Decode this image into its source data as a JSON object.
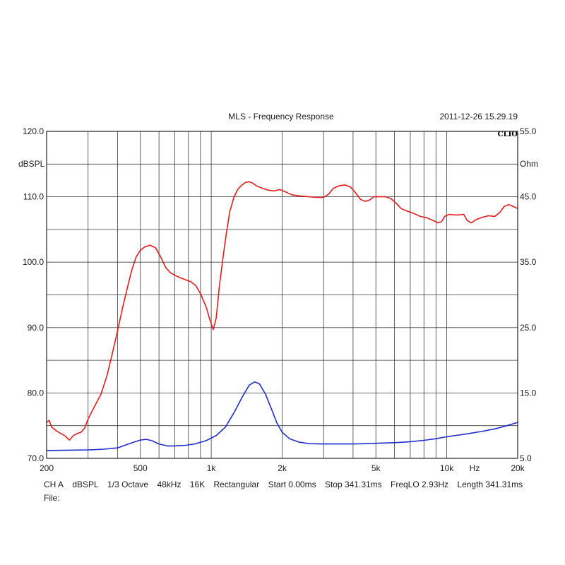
{
  "chart_data": {
    "type": "line",
    "title": "MLS - Frequency Response",
    "timestamp": "2011-12-26 15.29.19",
    "brand": "CLIO",
    "x_scale": "log",
    "xlim": [
      200,
      20000
    ],
    "x_ticks": [
      {
        "value": 200,
        "label": "200"
      },
      {
        "value": 500,
        "label": "500"
      },
      {
        "value": 1000,
        "label": "1k"
      },
      {
        "value": 2000,
        "label": "2k"
      },
      {
        "value": 5000,
        "label": "5k"
      },
      {
        "value": 10000,
        "label": "10k"
      },
      {
        "value": 20000,
        "label": "20k"
      }
    ],
    "x_unit": "Hz",
    "y_left": {
      "unit": "dBSPL",
      "ylim": [
        70,
        120
      ],
      "ticks": [
        {
          "value": 120,
          "label": "120.0"
        },
        {
          "value": 110,
          "label": "110.0"
        },
        {
          "value": 100,
          "label": "100.0"
        },
        {
          "value": 90,
          "label": "90.0"
        },
        {
          "value": 80,
          "label": "80.0"
        },
        {
          "value": 70,
          "label": "70.0"
        }
      ]
    },
    "y_right": {
      "unit": "Ohm",
      "ylim": [
        5,
        55
      ],
      "ticks": [
        {
          "value": 55,
          "label": "55.0"
        },
        {
          "value": 45,
          "label": "45.0"
        },
        {
          "value": 35,
          "label": "35.0"
        },
        {
          "value": 25,
          "label": "25.0"
        },
        {
          "value": 15,
          "label": "15.0"
        },
        {
          "value": 5,
          "label": "5.0"
        }
      ]
    },
    "grid": true,
    "series": [
      {
        "color": "#e31b1b",
        "axis": "left",
        "points": [
          [
            200,
            75.5
          ],
          [
            205,
            75.8
          ],
          [
            210,
            74.8
          ],
          [
            220,
            74.2
          ],
          [
            230,
            73.8
          ],
          [
            240,
            73.4
          ],
          [
            250,
            72.8
          ],
          [
            260,
            73.5
          ],
          [
            270,
            73.8
          ],
          [
            280,
            74.0
          ],
          [
            290,
            74.6
          ],
          [
            300,
            76.0
          ],
          [
            320,
            78.0
          ],
          [
            340,
            79.8
          ],
          [
            360,
            82.5
          ],
          [
            380,
            86.0
          ],
          [
            400,
            89.5
          ],
          [
            420,
            93.0
          ],
          [
            440,
            96.0
          ],
          [
            460,
            98.8
          ],
          [
            480,
            100.8
          ],
          [
            500,
            101.8
          ],
          [
            520,
            102.3
          ],
          [
            550,
            102.6
          ],
          [
            580,
            102.2
          ],
          [
            610,
            100.8
          ],
          [
            640,
            99.2
          ],
          [
            670,
            98.4
          ],
          [
            700,
            98.0
          ],
          [
            740,
            97.6
          ],
          [
            780,
            97.3
          ],
          [
            820,
            97.0
          ],
          [
            860,
            96.4
          ],
          [
            900,
            95.2
          ],
          [
            950,
            93.2
          ],
          [
            990,
            91.0
          ],
          [
            1020,
            89.7
          ],
          [
            1050,
            91.5
          ],
          [
            1080,
            96.0
          ],
          [
            1120,
            100.5
          ],
          [
            1160,
            104.5
          ],
          [
            1200,
            107.8
          ],
          [
            1250,
            110.0
          ],
          [
            1300,
            111.2
          ],
          [
            1350,
            111.8
          ],
          [
            1400,
            112.2
          ],
          [
            1450,
            112.3
          ],
          [
            1500,
            112.1
          ],
          [
            1550,
            111.7
          ],
          [
            1650,
            111.3
          ],
          [
            1750,
            111.0
          ],
          [
            1850,
            110.9
          ],
          [
            1950,
            111.1
          ],
          [
            2050,
            110.8
          ],
          [
            2200,
            110.3
          ],
          [
            2400,
            110.1
          ],
          [
            2600,
            110.0
          ],
          [
            2800,
            109.9
          ],
          [
            3000,
            109.9
          ],
          [
            3150,
            110.4
          ],
          [
            3300,
            111.3
          ],
          [
            3500,
            111.7
          ],
          [
            3700,
            111.8
          ],
          [
            3900,
            111.5
          ],
          [
            4100,
            110.6
          ],
          [
            4300,
            109.6
          ],
          [
            4500,
            109.3
          ],
          [
            4700,
            109.5
          ],
          [
            4900,
            110.0
          ],
          [
            5200,
            110.0
          ],
          [
            5500,
            110.0
          ],
          [
            5800,
            109.7
          ],
          [
            6100,
            109.0
          ],
          [
            6400,
            108.2
          ],
          [
            6800,
            107.8
          ],
          [
            7200,
            107.5
          ],
          [
            7700,
            107.0
          ],
          [
            8200,
            106.8
          ],
          [
            8700,
            106.4
          ],
          [
            9200,
            106.0
          ],
          [
            9500,
            106.2
          ],
          [
            9800,
            107.0
          ],
          [
            10200,
            107.3
          ],
          [
            11000,
            107.2
          ],
          [
            11800,
            107.3
          ],
          [
            12200,
            106.4
          ],
          [
            12700,
            106.0
          ],
          [
            13300,
            106.5
          ],
          [
            14000,
            106.8
          ],
          [
            15000,
            107.1
          ],
          [
            16000,
            107.0
          ],
          [
            16800,
            107.6
          ],
          [
            17500,
            108.5
          ],
          [
            18300,
            108.8
          ],
          [
            19200,
            108.5
          ],
          [
            20000,
            108.2
          ]
        ]
      },
      {
        "color": "#1f2ecc",
        "axis": "right",
        "points": [
          [
            200,
            6.2
          ],
          [
            250,
            6.25
          ],
          [
            300,
            6.3
          ],
          [
            350,
            6.4
          ],
          [
            400,
            6.6
          ],
          [
            430,
            7.0
          ],
          [
            470,
            7.5
          ],
          [
            500,
            7.8
          ],
          [
            530,
            7.9
          ],
          [
            560,
            7.7
          ],
          [
            600,
            7.2
          ],
          [
            650,
            6.9
          ],
          [
            700,
            6.9
          ],
          [
            780,
            7.0
          ],
          [
            850,
            7.2
          ],
          [
            950,
            7.7
          ],
          [
            1050,
            8.5
          ],
          [
            1150,
            9.8
          ],
          [
            1250,
            12.0
          ],
          [
            1350,
            14.3
          ],
          [
            1450,
            16.2
          ],
          [
            1530,
            16.7
          ],
          [
            1600,
            16.4
          ],
          [
            1700,
            14.8
          ],
          [
            1800,
            12.6
          ],
          [
            1900,
            10.4
          ],
          [
            2000,
            9.0
          ],
          [
            2150,
            8.0
          ],
          [
            2350,
            7.5
          ],
          [
            2600,
            7.25
          ],
          [
            3000,
            7.2
          ],
          [
            3500,
            7.2
          ],
          [
            4000,
            7.2
          ],
          [
            4500,
            7.25
          ],
          [
            5000,
            7.3
          ],
          [
            6000,
            7.4
          ],
          [
            7000,
            7.55
          ],
          [
            8000,
            7.75
          ],
          [
            9000,
            8.0
          ],
          [
            10000,
            8.3
          ],
          [
            12000,
            8.7
          ],
          [
            14000,
            9.1
          ],
          [
            16000,
            9.5
          ],
          [
            18000,
            10.0
          ],
          [
            20000,
            10.5
          ]
        ]
      }
    ]
  },
  "footer": {
    "items": [
      "CH A",
      "dBSPL",
      "1/3 Octave",
      "48kHz",
      "16K",
      "Rectangular",
      "Start 0.00ms",
      "Stop 341.31ms",
      "FreqLO 2.93Hz",
      "Length 341.31ms"
    ],
    "file_label": "File:"
  }
}
